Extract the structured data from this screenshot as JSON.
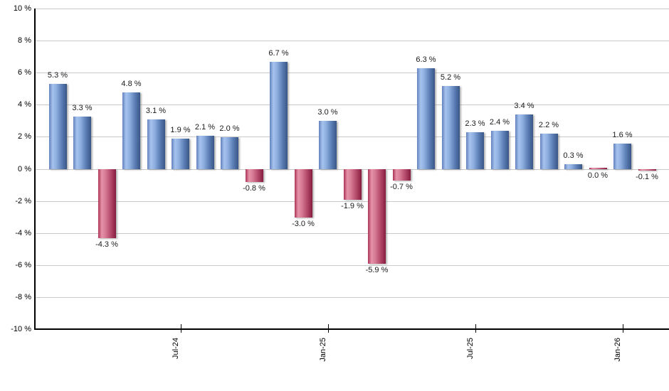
{
  "chart_data": {
    "type": "bar",
    "title": "",
    "xlabel": "",
    "ylabel": "",
    "ylim": [
      -10,
      10
    ],
    "grid": true,
    "legend": "none",
    "values": [
      5.3,
      3.3,
      -4.3,
      4.8,
      3.1,
      1.9,
      2.1,
      2.0,
      -0.8,
      6.7,
      -3.0,
      3.0,
      -1.9,
      -5.9,
      -0.7,
      6.3,
      5.2,
      2.3,
      2.4,
      3.4,
      2.2,
      0.3,
      0.0,
      1.6,
      -0.1
    ],
    "bar_labels": [
      "5.3 %",
      "3.3 %",
      "-4.3 %",
      "4.8 %",
      "3.1 %",
      "1.9 %",
      "2.1 %",
      "2.0 %",
      "-0.8 %",
      "6.7 %",
      "-3.0 %",
      "3.0 %",
      "-1.9 %",
      "-5.9 %",
      "-0.7 %",
      "6.3 %",
      "5.2 %",
      "2.3 %",
      "2.4 %",
      "3.4 %",
      "2.2 %",
      "0.3 %",
      "0.0 %",
      "1.6 %",
      "-0.1 %"
    ],
    "y_tick_labels": [
      "10 %",
      "8 %",
      "6 %",
      "4 %",
      "2 %",
      "0 %",
      "-2 %",
      "-4 %",
      "-6 %",
      "-8 %",
      "-10 %"
    ],
    "x_ticks": [
      {
        "index": 5,
        "label": "Jul-24"
      },
      {
        "index": 11,
        "label": "Jan-25"
      },
      {
        "index": 17,
        "label": "Jul-25"
      },
      {
        "index": 23,
        "label": "Jan-26"
      }
    ],
    "colors": {
      "positive_light": "#a6c2ee",
      "positive_dark": "#395687",
      "negative_light": "#e593a9",
      "negative_dark": "#871d3e",
      "gridline": "#c9c9c9",
      "axis": "#000000",
      "label_text": "#1a1a1a"
    }
  }
}
